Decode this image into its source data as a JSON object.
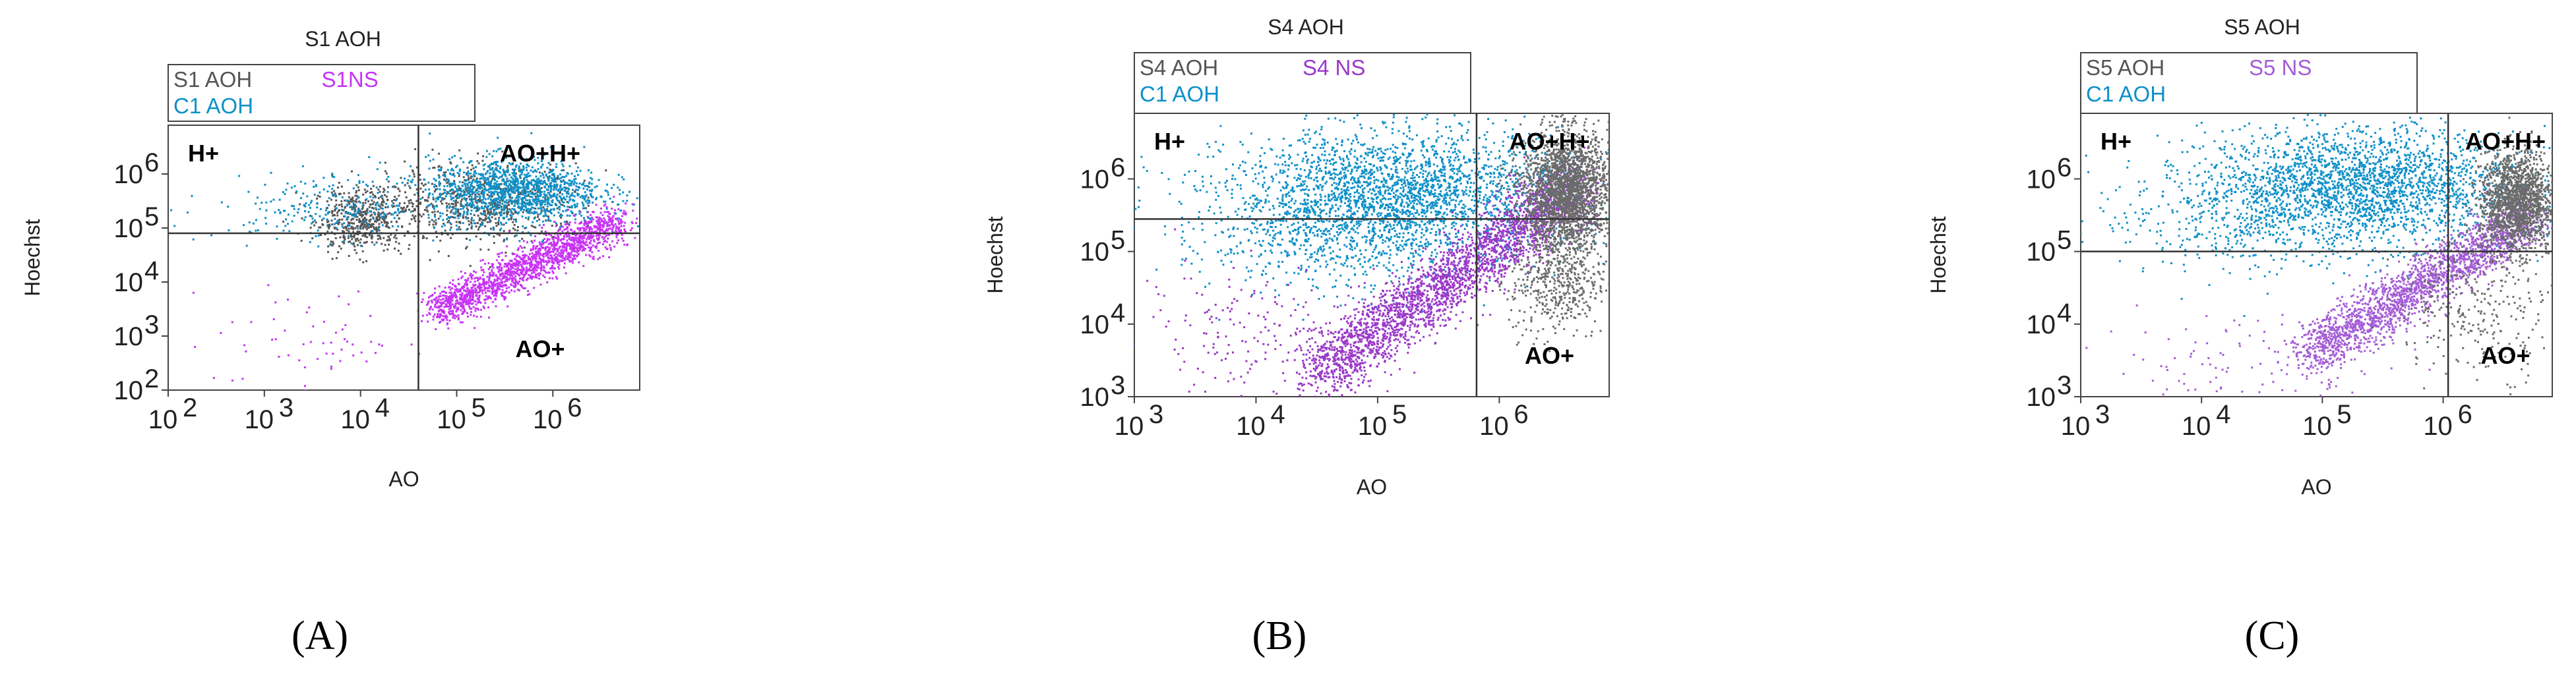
{
  "figure": {
    "panel_letters": [
      "(A)",
      "(B)",
      "(C)"
    ]
  },
  "chart_data": [
    {
      "type": "scatter",
      "title": "S1 AOH",
      "xlabel": "AO",
      "ylabel": "Hoechst",
      "x_scale": "log",
      "y_scale": "log",
      "xlim": [
        100,
        8000000
      ],
      "ylim": [
        100,
        8000000
      ],
      "x_ticks": [
        100,
        1000,
        10000,
        100000,
        1000000
      ],
      "y_ticks": [
        100,
        1000,
        10000,
        100000,
        1000000
      ],
      "gates": {
        "x": 40000,
        "y": 80000
      },
      "quadrant_labels": {
        "upper_left": "H+",
        "upper_right": "AO+H+",
        "lower_right": "AO+"
      },
      "legend": [
        {
          "label": "S1 AOH",
          "color": "#555555"
        },
        {
          "label": "S1NS",
          "color": "#c833f5"
        },
        {
          "label": "C1 AOH",
          "color": "#0e90c8"
        }
      ],
      "series": [
        {
          "name": "S1 AOH",
          "color": "#555555",
          "clusters": [
            {
              "center": [
                10000,
                150000
              ],
              "spread": [
                0.25,
                0.3
              ],
              "n": 500
            },
            {
              "center": [
                200000,
                300000
              ],
              "spread": [
                0.5,
                0.35
              ],
              "n": 700
            }
          ]
        },
        {
          "name": "S1NS",
          "color": "#c833f5",
          "clusters": [
            {
              "diagonal": {
                "from": [
                  60000,
                  3000
                ],
                "to": [
                  5000000,
                  150000
                ]
              },
              "spread": 0.18,
              "n": 1700
            },
            {
              "center": [
                3000,
                800
              ],
              "spread": [
                0.5,
                0.5
              ],
              "n": 60
            }
          ]
        },
        {
          "name": "C1 AOH",
          "color": "#0e90c8",
          "clusters": [
            {
              "center": [
                400000,
                500000
              ],
              "spread": [
                0.45,
                0.3
              ],
              "n": 1300
            },
            {
              "center": [
                5000,
                250000
              ],
              "spread": [
                0.6,
                0.3
              ],
              "n": 250
            }
          ]
        }
      ]
    },
    {
      "type": "scatter",
      "title": "S4 AOH",
      "xlabel": "AO",
      "ylabel": "Hoechst",
      "x_scale": "log",
      "y_scale": "log",
      "xlim": [
        1000,
        8000000
      ],
      "ylim": [
        1000,
        8000000
      ],
      "x_ticks": [
        1000,
        10000,
        100000,
        1000000
      ],
      "y_ticks": [
        1000,
        10000,
        100000,
        1000000
      ],
      "gates": {
        "x": 650000,
        "y": 280000
      },
      "quadrant_labels": {
        "upper_left": "H+",
        "upper_right": "AO+H+",
        "lower_right": "AO+"
      },
      "legend": [
        {
          "label": "S4 AOH",
          "color": "#555555"
        },
        {
          "label": "S4 NS",
          "color": "#9a38c8"
        },
        {
          "label": "C1 AOH",
          "color": "#0e90c8"
        }
      ],
      "series": [
        {
          "name": "C1 AOH",
          "color": "#0e90c8",
          "clusters": [
            {
              "center": [
                150000,
                600000
              ],
              "spread": [
                0.7,
                0.45
              ],
              "n": 2600
            },
            {
              "center": [
                30000,
                150000
              ],
              "spread": [
                0.6,
                0.4
              ],
              "n": 400
            }
          ]
        },
        {
          "name": "S4 NS",
          "color": "#9a38c8",
          "clusters": [
            {
              "diagonal": {
                "from": [
                  30000,
                  2000
                ],
                "to": [
                  4000000,
                  700000
                ]
              },
              "spread": 0.22,
              "n": 2600
            },
            {
              "center": [
                10000,
                8000
              ],
              "spread": [
                0.6,
                0.5
              ],
              "n": 200
            }
          ]
        },
        {
          "name": "S4 AOH",
          "color": "#6b6b6b",
          "clusters": [
            {
              "center": [
                3500000,
                700000
              ],
              "spread": [
                0.18,
                0.4
              ],
              "n": 2200
            },
            {
              "center": [
                3000000,
                40000
              ],
              "spread": [
                0.2,
                0.4
              ],
              "n": 500
            }
          ]
        }
      ]
    },
    {
      "type": "scatter",
      "title": "S5 AOH",
      "xlabel": "AO",
      "ylabel": "Hoechst",
      "x_scale": "log",
      "y_scale": "log",
      "xlim": [
        1000,
        8000000
      ],
      "ylim": [
        1000,
        8000000
      ],
      "x_ticks": [
        1000,
        10000,
        100000,
        1000000
      ],
      "y_ticks": [
        1000,
        10000,
        100000,
        1000000
      ],
      "gates": {
        "x": 1100000,
        "y": 100000
      },
      "quadrant_labels": {
        "upper_left": "H+",
        "upper_right": "AO+H+",
        "lower_right": "AO+"
      },
      "legend": [
        {
          "label": "S5 AOH",
          "color": "#555555"
        },
        {
          "label": "S5 NS",
          "color": "#a45cd6"
        },
        {
          "label": "C1 AOH",
          "color": "#0e90c8"
        }
      ],
      "series": [
        {
          "name": "C1 AOH",
          "color": "#0e90c8",
          "clusters": [
            {
              "center": [
                200000,
                800000
              ],
              "spread": [
                0.65,
                0.4
              ],
              "n": 2400
            },
            {
              "center": [
                20000,
                300000
              ],
              "spread": [
                0.6,
                0.4
              ],
              "n": 350
            }
          ]
        },
        {
          "name": "S5 NS",
          "color": "#a45cd6",
          "clusters": [
            {
              "diagonal": {
                "from": [
                  80000,
                  4000
                ],
                "to": [
                  5000000,
                  300000
                ]
              },
              "spread": 0.18,
              "n": 2000
            },
            {
              "center": [
                20000,
                2500
              ],
              "spread": [
                0.6,
                0.4
              ],
              "n": 120
            }
          ]
        },
        {
          "name": "S5 AOH",
          "color": "#6b6b6b",
          "clusters": [
            {
              "center": [
                4000000,
                500000
              ],
              "spread": [
                0.15,
                0.35
              ],
              "n": 1600
            },
            {
              "center": [
                2000000,
                20000
              ],
              "spread": [
                0.35,
                0.5
              ],
              "n": 300
            }
          ]
        }
      ]
    }
  ]
}
